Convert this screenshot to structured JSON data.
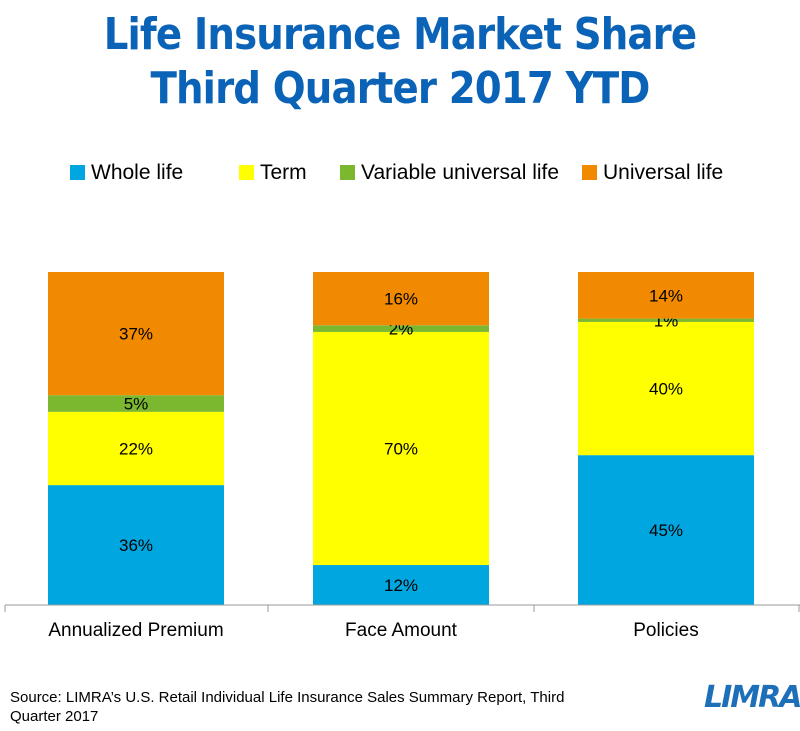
{
  "chart_data": {
    "type": "stacked-bar",
    "title": "Life Insurance Market Share",
    "subtitle": "Third Quarter 2017 YTD",
    "categories": [
      "Annualized Premium",
      "Face Amount",
      "Policies"
    ],
    "series": [
      {
        "name": "Whole life",
        "color": "#00a6e0",
        "values": [
          36,
          12,
          45
        ],
        "labels": [
          "36%",
          "12%",
          "45%"
        ]
      },
      {
        "name": "Term",
        "color": "#ffff00",
        "values": [
          22,
          70,
          40
        ],
        "labels": [
          "22%",
          "70%",
          "40%"
        ]
      },
      {
        "name": "Variable universal life",
        "color": "#7cb82f",
        "values": [
          5,
          2,
          1
        ],
        "labels": [
          "5%",
          "2%",
          "1%"
        ]
      },
      {
        "name": "Universal life",
        "color": "#f18a00",
        "values": [
          37,
          16,
          14
        ],
        "labels": [
          "37%",
          "16%",
          "14%"
        ]
      }
    ],
    "ylim": [
      0,
      100
    ],
    "legend": "top",
    "grid": false
  },
  "footer": {
    "source_line1": "Source: LIMRA’s U.S. Retail Individual Life Insurance Sales Summary Report, Third",
    "source_line2": "Quarter 2017",
    "logo": "LIMRA"
  }
}
